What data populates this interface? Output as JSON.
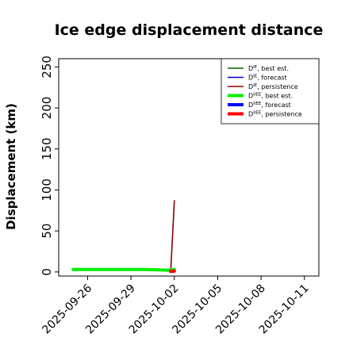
{
  "chart_data": {
    "type": "line",
    "title": "Ice edge displacement distance",
    "xlabel": "",
    "ylabel": "Displacement (km)",
    "xlim": [
      "2025-09-24",
      "2025-10-12"
    ],
    "ylim": [
      -5,
      260
    ],
    "yticks": [
      0,
      50,
      100,
      150,
      200,
      250
    ],
    "xticks": [
      "2025-09-26",
      "2025-09-29",
      "2025-10-02",
      "2025-10-05",
      "2025-10-08",
      "2025-10-11"
    ],
    "highlighted_xtick": "2025-10-02",
    "highlight_color": "#228b22",
    "grid": false,
    "legend_position": "top-right",
    "series": [
      {
        "name": "DIE, best est.",
        "color": "#006400",
        "width": "thin",
        "x": [],
        "y": []
      },
      {
        "name": "DIE, forecast",
        "color": "#0000cd",
        "width": "thin",
        "x": [],
        "y": []
      },
      {
        "name": "DIE, persistence",
        "color": "#8b0000",
        "width": "thin",
        "x": [
          "2025-10-01T18:00",
          "2025-10-02T00:00"
        ],
        "y": [
          0,
          87
        ]
      },
      {
        "name": "DIIEE, best est.",
        "color": "#00ee00",
        "width": "thick",
        "x": [
          "2025-09-25",
          "2025-09-26",
          "2025-09-29",
          "2025-09-30",
          "2025-10-01",
          "2025-10-01T18:00",
          "2025-10-02"
        ],
        "y": [
          3,
          3,
          3,
          3,
          2.5,
          2,
          3
        ]
      },
      {
        "name": "DIIEE, forecast",
        "color": "#0000ff",
        "width": "thick",
        "x": [],
        "y": []
      },
      {
        "name": "DIIEE, persistence",
        "color": "#ff0000",
        "width": "thick",
        "x": [
          "2025-10-01T18:00",
          "2025-10-02"
        ],
        "y": [
          0.5,
          1
        ]
      }
    ]
  }
}
